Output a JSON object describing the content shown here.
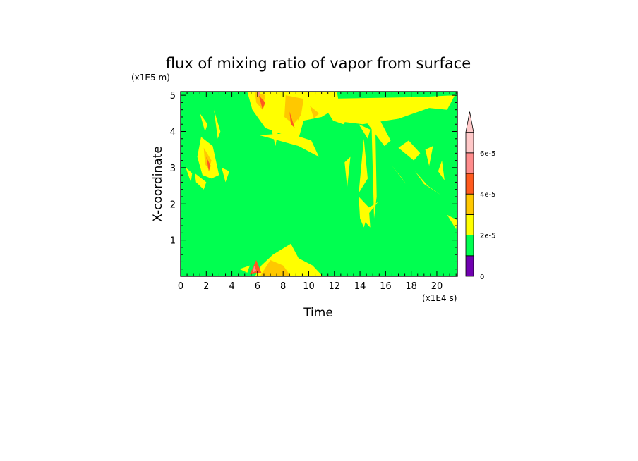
{
  "chart_data": {
    "type": "heatmap",
    "title": "flux of mixing ratio of vapor from surface",
    "xlabel": "Time",
    "ylabel": "X-coordinate",
    "x_unit": "(x1E4 s)",
    "y_unit": "(x1E5 m)",
    "xlim": [
      0,
      21.6
    ],
    "ylim": [
      0,
      5.1
    ],
    "x_ticks": [
      "0",
      "2",
      "4",
      "6",
      "8",
      "10",
      "12",
      "14",
      "16",
      "18",
      "20"
    ],
    "y_ticks": [
      "1",
      "2",
      "3",
      "4",
      "5"
    ],
    "background_level_color": "#00ff50",
    "colorbar": {
      "levels": [
        {
          "from": 0,
          "to": 1e-05,
          "color": "#7000b0"
        },
        {
          "from": 1e-05,
          "to": 2e-05,
          "color": "#00ff50"
        },
        {
          "from": 2e-05,
          "to": 3e-05,
          "color": "#ffff00"
        },
        {
          "from": 3e-05,
          "to": 4e-05,
          "color": "#ffc800"
        },
        {
          "from": 4e-05,
          "to": 5e-05,
          "color": "#ff5a1e"
        },
        {
          "from": 5e-05,
          "to": 6e-05,
          "color": "#ff8c8c"
        },
        {
          "from": 6e-05,
          "to": 7e-05,
          "color": "#ffc8c8"
        }
      ],
      "tick_labels": [
        {
          "value": 0,
          "label": "0"
        },
        {
          "value": 2e-05,
          "label": "2e-5"
        },
        {
          "value": 4e-05,
          "label": "4e-5"
        },
        {
          "value": 6e-05,
          "label": "6e-5"
        }
      ],
      "overflow_triangle": true
    },
    "regions": [
      {
        "level": 2,
        "points": [
          [
            5.2,
            5.1
          ],
          [
            12.2,
            5.1
          ],
          [
            12.4,
            4.7
          ],
          [
            11,
            4.4
          ],
          [
            9.6,
            4.3
          ],
          [
            9.2,
            3.8
          ],
          [
            8.1,
            3.9
          ],
          [
            6.6,
            4.1
          ],
          [
            5.6,
            4.6
          ]
        ]
      },
      {
        "level": 2,
        "points": [
          [
            10.8,
            4.9
          ],
          [
            18.6,
            4.95
          ],
          [
            21.4,
            5.0
          ],
          [
            20.8,
            4.6
          ],
          [
            19.4,
            4.65
          ],
          [
            17,
            4.35
          ],
          [
            14.2,
            4.2
          ],
          [
            11.9,
            4.3
          ]
        ]
      },
      {
        "level": 2,
        "points": [
          [
            6.1,
            3.9
          ],
          [
            9.2,
            3.6
          ],
          [
            10.8,
            3.3
          ],
          [
            10.2,
            3.75
          ],
          [
            8.5,
            3.95
          ]
        ]
      },
      {
        "level": 2,
        "points": [
          [
            14.3,
            4.35
          ],
          [
            15.9,
            3.6
          ],
          [
            16.4,
            3.75
          ],
          [
            15.5,
            4.35
          ]
        ]
      },
      {
        "level": 2,
        "points": [
          [
            13.9,
            4.2
          ],
          [
            14.6,
            3.8
          ],
          [
            14.8,
            4.05
          ]
        ]
      },
      {
        "level": 2,
        "points": [
          [
            1.6,
            3.85
          ],
          [
            2.5,
            3.6
          ],
          [
            3.0,
            2.8
          ],
          [
            2.4,
            2.7
          ],
          [
            1.7,
            2.8
          ],
          [
            1.3,
            3.3
          ]
        ]
      },
      {
        "level": 2,
        "points": [
          [
            1.1,
            2.85
          ],
          [
            2.0,
            2.6
          ],
          [
            1.8,
            2.4
          ],
          [
            1.2,
            2.6
          ]
        ]
      },
      {
        "level": 2,
        "points": [
          [
            2.6,
            4.6
          ],
          [
            2.9,
            3.8
          ],
          [
            3.1,
            4.0
          ]
        ]
      },
      {
        "level": 2,
        "points": [
          [
            1.5,
            4.5
          ],
          [
            2.1,
            4.2
          ],
          [
            1.9,
            4.0
          ]
        ]
      },
      {
        "level": 2,
        "points": [
          [
            5.8,
            0
          ],
          [
            11.1,
            0
          ],
          [
            10.3,
            0.3
          ],
          [
            9.2,
            0.5
          ],
          [
            8.6,
            0.9
          ],
          [
            7.2,
            0.6
          ],
          [
            6.3,
            0.3
          ]
        ]
      },
      {
        "level": 2,
        "points": [
          [
            13.9,
            2.2
          ],
          [
            14.7,
            1.9
          ],
          [
            15.4,
            2.05
          ],
          [
            14.6,
            1.7
          ],
          [
            14.3,
            1.35
          ],
          [
            14.0,
            1.6
          ]
        ]
      },
      {
        "level": 2,
        "points": [
          [
            18.3,
            2.9
          ],
          [
            19.3,
            2.5
          ],
          [
            20.3,
            2.25
          ],
          [
            19.0,
            2.55
          ]
        ]
      },
      {
        "level": 2,
        "points": [
          [
            17.0,
            3.55
          ],
          [
            18.2,
            3.2
          ],
          [
            18.7,
            3.4
          ],
          [
            17.8,
            3.75
          ]
        ]
      },
      {
        "level": 2,
        "points": [
          [
            16.5,
            3.05
          ],
          [
            17.6,
            2.55
          ],
          [
            17.2,
            2.75
          ]
        ]
      },
      {
        "level": 2,
        "points": [
          [
            20.8,
            1.7
          ],
          [
            21.5,
            1.3
          ],
          [
            21.6,
            1.55
          ]
        ]
      },
      {
        "level": 2,
        "points": [
          [
            12.8,
            3.15
          ],
          [
            13.25,
            3.3
          ],
          [
            13.0,
            2.45
          ]
        ]
      },
      {
        "level": 2,
        "points": [
          [
            13.9,
            2.3
          ],
          [
            14.3,
            3.8
          ],
          [
            14.6,
            2.7
          ]
        ]
      },
      {
        "level": 2,
        "points": [
          [
            14.9,
            4.2
          ],
          [
            15.1,
            1.6
          ],
          [
            15.3,
            2.2
          ],
          [
            15.2,
            4.1
          ]
        ]
      },
      {
        "level": 2,
        "points": [
          [
            19.1,
            3.5
          ],
          [
            19.4,
            3.05
          ],
          [
            19.7,
            3.6
          ]
        ]
      },
      {
        "level": 2,
        "points": [
          [
            20.1,
            2.9
          ],
          [
            20.6,
            2.65
          ],
          [
            20.4,
            3.2
          ]
        ]
      },
      {
        "level": 2,
        "points": [
          [
            14.4,
            1.5
          ],
          [
            14.7,
            1.85
          ],
          [
            14.8,
            1.35
          ]
        ]
      },
      {
        "level": 2,
        "points": [
          [
            11.9,
            4.3
          ],
          [
            12.8,
            4.6
          ],
          [
            13.3,
            4.5
          ],
          [
            12.7,
            4.2
          ]
        ]
      },
      {
        "level": 2,
        "points": [
          [
            4.6,
            0.2
          ],
          [
            5.2,
            0.1
          ],
          [
            5.4,
            0.3
          ]
        ]
      },
      {
        "level": 2,
        "points": [
          [
            3.2,
            3.0
          ],
          [
            3.5,
            2.6
          ],
          [
            3.8,
            2.9
          ]
        ]
      },
      {
        "level": 2,
        "points": [
          [
            0.4,
            3.0
          ],
          [
            0.8,
            2.6
          ],
          [
            0.9,
            2.85
          ]
        ]
      },
      {
        "level": 2,
        "points": [
          [
            7.0,
            4.2
          ],
          [
            7.6,
            4.0
          ],
          [
            7.4,
            3.6
          ]
        ]
      },
      {
        "level": 3,
        "points": [
          [
            8.2,
            5.0
          ],
          [
            9.6,
            4.9
          ],
          [
            9.4,
            4.45
          ],
          [
            8.8,
            4.2
          ],
          [
            8.1,
            4.4
          ]
        ]
      },
      {
        "level": 3,
        "points": [
          [
            5.8,
            5.1
          ],
          [
            6.6,
            5.0
          ],
          [
            6.4,
            4.6
          ],
          [
            5.9,
            4.8
          ]
        ]
      },
      {
        "level": 3,
        "points": [
          [
            6.2,
            0
          ],
          [
            8.6,
            0
          ],
          [
            8.0,
            0.3
          ],
          [
            7.0,
            0.45
          ]
        ]
      },
      {
        "level": 3,
        "points": [
          [
            1.8,
            3.55
          ],
          [
            2.4,
            3.2
          ],
          [
            2.2,
            2.95
          ],
          [
            1.9,
            3.1
          ]
        ]
      },
      {
        "level": 3,
        "points": [
          [
            8.7,
            4.7
          ],
          [
            9.4,
            4.55
          ],
          [
            9.2,
            4.3
          ]
        ]
      },
      {
        "level": 3,
        "points": [
          [
            10.1,
            4.7
          ],
          [
            10.8,
            4.5
          ],
          [
            10.4,
            4.35
          ]
        ]
      },
      {
        "level": 4,
        "points": [
          [
            6.1,
            5.0
          ],
          [
            6.6,
            4.8
          ],
          [
            6.4,
            4.6
          ]
        ]
      },
      {
        "level": 4,
        "points": [
          [
            8.5,
            4.55
          ],
          [
            8.9,
            4.1
          ],
          [
            8.6,
            4.2
          ]
        ]
      },
      {
        "level": 4,
        "points": [
          [
            5.4,
            0.05
          ],
          [
            6.3,
            0.1
          ],
          [
            5.9,
            0.45
          ]
        ]
      },
      {
        "level": 4,
        "points": [
          [
            2.0,
            3.3
          ],
          [
            2.35,
            3.05
          ],
          [
            2.2,
            2.9
          ]
        ]
      },
      {
        "level": 5,
        "points": [
          [
            6.0,
            5.08
          ],
          [
            6.2,
            5.08
          ],
          [
            6.1,
            4.95
          ]
        ]
      },
      {
        "level": 5,
        "points": [
          [
            5.6,
            0.1
          ],
          [
            5.9,
            0.15
          ],
          [
            5.75,
            0.3
          ]
        ]
      }
    ]
  }
}
